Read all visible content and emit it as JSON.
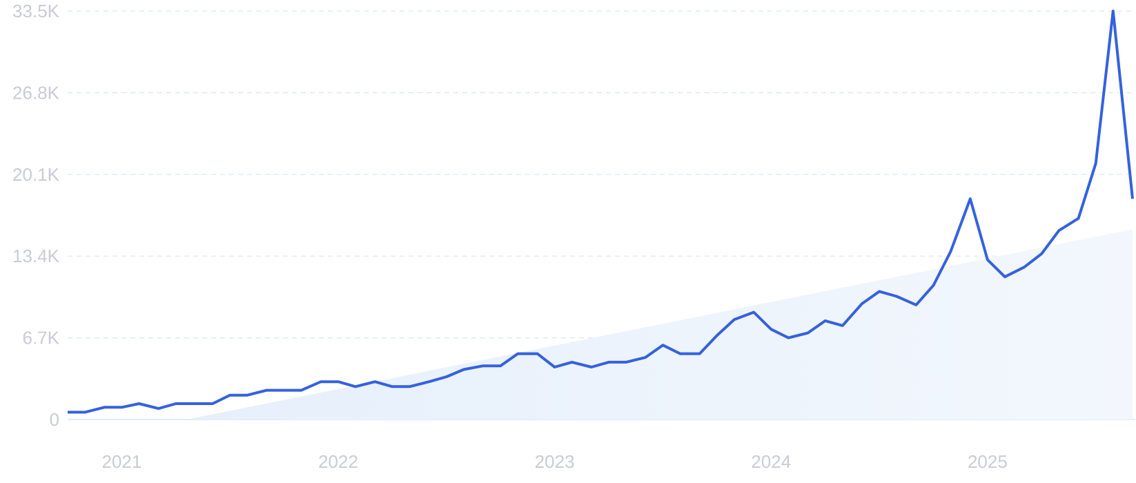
{
  "chart_data": {
    "type": "line",
    "title": "",
    "xlabel": "",
    "ylabel": "",
    "ylim": [
      0,
      33500
    ],
    "grid": true,
    "legend": "none",
    "y_ticks": [
      0,
      6700,
      13400,
      20100,
      26800,
      33500
    ],
    "y_tick_labels": [
      "0",
      "6.7K",
      "13.4K",
      "20.1K",
      "26.8K",
      "33.5K"
    ],
    "x_tick_labels": [
      "2021",
      "2022",
      "2023",
      "2024",
      "2025"
    ],
    "x_tick_positions": [
      2021.0,
      2022.0,
      2023.0,
      2024.0,
      2025.0
    ],
    "xlim": [
      2020.75,
      2025.67
    ],
    "series": [
      {
        "color": "#3461de",
        "x": [
          2020.75,
          2020.83,
          2020.92,
          2021.0,
          2021.08,
          2021.17,
          2021.25,
          2021.33,
          2021.42,
          2021.5,
          2021.58,
          2021.67,
          2021.75,
          2021.83,
          2021.92,
          2022.0,
          2022.08,
          2022.17,
          2022.25,
          2022.33,
          2022.42,
          2022.5,
          2022.58,
          2022.67,
          2022.75,
          2022.83,
          2022.92,
          2023.0,
          2023.08,
          2023.17,
          2023.25,
          2023.33,
          2023.42,
          2023.5,
          2023.58,
          2023.67,
          2023.75,
          2023.83,
          2023.92,
          2024.0,
          2024.08,
          2024.17,
          2024.25,
          2024.33,
          2024.42,
          2024.5,
          2024.58,
          2024.67,
          2024.75,
          2024.83,
          2024.92,
          2025.0,
          2025.08,
          2025.17,
          2025.25,
          2025.33,
          2025.42,
          2025.5,
          2025.58,
          2025.67
        ],
        "values": [
          600,
          600,
          1000,
          1000,
          1300,
          900,
          1300,
          1300,
          1300,
          2000,
          2000,
          2400,
          2400,
          2400,
          3100,
          3100,
          2700,
          3100,
          2700,
          2700,
          3100,
          3500,
          4100,
          4400,
          4400,
          5400,
          5400,
          4300,
          4700,
          4300,
          4700,
          4700,
          5100,
          6100,
          5400,
          5400,
          6900,
          8200,
          8800,
          7400,
          6700,
          7100,
          8100,
          7700,
          9500,
          10500,
          10100,
          9400,
          11000,
          13800,
          18100,
          13100,
          11700,
          12500,
          13600,
          15500,
          16500,
          21000,
          33500,
          18100
        ]
      },
      {
        "type": "area",
        "color": "#e6f0fb",
        "x": [
          2021.3,
          2025.67
        ],
        "values": [
          0,
          15600
        ]
      }
    ]
  }
}
